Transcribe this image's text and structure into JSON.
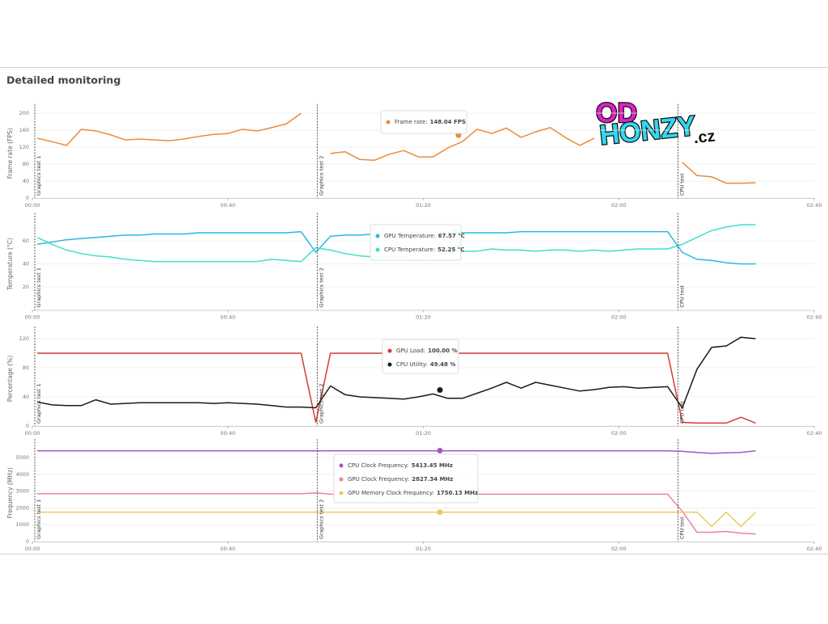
{
  "page": {
    "title": "Detailed monitoring"
  },
  "logo": {
    "top": "OD",
    "middle": "HONZY",
    "suffix": ".cz"
  },
  "chart_data": [
    {
      "type": "line",
      "ylabel": "Frame rate (FPS)",
      "xlim": [
        0,
        160
      ],
      "xticks": [
        {
          "value": 0,
          "label": "00:00"
        },
        {
          "value": 40,
          "label": "00:40"
        },
        {
          "value": 80,
          "label": "01:20"
        },
        {
          "value": 120,
          "label": "02:00"
        },
        {
          "value": 160,
          "label": "02:40"
        }
      ],
      "ylim": [
        0,
        210
      ],
      "yticks": [
        0,
        40,
        80,
        120,
        160,
        200
      ],
      "grid": true,
      "markers": [
        {
          "x": 0.5,
          "label": "Graphics test 1"
        },
        {
          "x": 58.3,
          "label": "Graphics test 2"
        },
        {
          "x": 132.1,
          "label": "CPU test"
        }
      ],
      "x": [
        1,
        4,
        7,
        10,
        13,
        16,
        19,
        22,
        25,
        28,
        31,
        34,
        37,
        40,
        43,
        46,
        49,
        52,
        55,
        58,
        61,
        64,
        67,
        70,
        73,
        76,
        79,
        82,
        85,
        88,
        91,
        94,
        97,
        100,
        103,
        106,
        109,
        112,
        115,
        118,
        121,
        124,
        127,
        130,
        133,
        136,
        139,
        142,
        145,
        148
      ],
      "series": [
        {
          "name": "Frame rate",
          "color": "#ee8a35",
          "values": [
            141,
            133,
            124,
            162,
            158,
            149,
            137,
            139,
            137,
            135,
            139,
            145,
            150,
            152,
            162,
            158,
            166,
            175,
            200,
            null,
            105,
            109,
            91,
            89,
            103,
            112,
            97,
            97,
            118,
            133,
            162,
            152,
            165,
            143,
            156,
            166,
            143,
            124,
            141,
            null,
            null,
            null,
            null,
            null,
            84,
            53,
            50,
            35,
            35,
            36
          ]
        }
      ],
      "tooltip": {
        "x": 87.2,
        "items": [
          {
            "label": "Frame rate:",
            "value": 148.04,
            "value_label": "148.04 FPS"
          }
        ]
      }
    },
    {
      "type": "line",
      "ylabel": "Temperature (°C)",
      "xlim": [
        0,
        160
      ],
      "xticks": [
        {
          "value": 0,
          "label": "00:00"
        },
        {
          "value": 40,
          "label": "00:40"
        },
        {
          "value": 80,
          "label": "01:20"
        },
        {
          "value": 120,
          "label": "02:00"
        },
        {
          "value": 160,
          "label": "02:40"
        }
      ],
      "ylim": [
        0,
        80
      ],
      "yticks": [
        20,
        40,
        60
      ],
      "grid": true,
      "markers": [
        {
          "x": 0.5,
          "label": "Graphics test 1"
        },
        {
          "x": 58.3,
          "label": "Graphics test 2"
        },
        {
          "x": 132.1,
          "label": "CPU test"
        }
      ],
      "x": [
        1,
        4,
        7,
        10,
        13,
        16,
        19,
        22,
        25,
        28,
        31,
        34,
        37,
        40,
        43,
        46,
        49,
        52,
        55,
        58,
        61,
        64,
        67,
        70,
        73,
        76,
        79,
        82,
        85,
        88,
        91,
        94,
        97,
        100,
        103,
        106,
        109,
        112,
        115,
        118,
        121,
        124,
        127,
        130,
        133,
        136,
        139,
        142,
        145,
        148
      ],
      "series": [
        {
          "name": "GPU Temperature",
          "color": "#29b6e8",
          "values": [
            57,
            59,
            61,
            62,
            63,
            64,
            65,
            65,
            66,
            66,
            66,
            67,
            67,
            67,
            67,
            67,
            67,
            67,
            68,
            50,
            64,
            65,
            65,
            66,
            66,
            67,
            67,
            67,
            67,
            67,
            67,
            67,
            67,
            68,
            68,
            68,
            68,
            68,
            68,
            68,
            68,
            68,
            68,
            68,
            50,
            44,
            43,
            41,
            40,
            40
          ]
        },
        {
          "name": "CPU Temperature",
          "color": "#40e0c8",
          "values": [
            63,
            57,
            52,
            49,
            47,
            46,
            44,
            43,
            42,
            42,
            42,
            42,
            42,
            42,
            42,
            42,
            44,
            43,
            42,
            54,
            52,
            49,
            47,
            46,
            46,
            46,
            45,
            47,
            50,
            51,
            51,
            53,
            52,
            52,
            51,
            52,
            52,
            51,
            52,
            51,
            52,
            53,
            53,
            53,
            57,
            63,
            69,
            72,
            74,
            74
          ]
        }
      ],
      "tooltip": {
        "x": 86.6,
        "items": [
          {
            "label": "GPU Temperature:",
            "value": 67.57,
            "value_label": "67.57 °C"
          },
          {
            "label": "CPU Temperature:",
            "value": 52.25,
            "value_label": "52.25 °C"
          }
        ]
      }
    },
    {
      "type": "line",
      "ylabel": "Percentage (%)",
      "xlim": [
        0,
        160
      ],
      "xticks": [
        {
          "value": 0,
          "label": "00:00"
        },
        {
          "value": 40,
          "label": "00:40"
        },
        {
          "value": 80,
          "label": "01:20"
        },
        {
          "value": 120,
          "label": "02:00"
        },
        {
          "value": 160,
          "label": "02:40"
        }
      ],
      "ylim": [
        0,
        130
      ],
      "yticks": [
        0,
        40,
        80,
        120
      ],
      "grid": true,
      "markers": [
        {
          "x": 0.5,
          "label": "Graphics test 1"
        },
        {
          "x": 58.3,
          "label": "Graphics test 2"
        },
        {
          "x": 132.1,
          "label": "CPU test"
        }
      ],
      "x": [
        1,
        4,
        7,
        10,
        13,
        16,
        19,
        22,
        25,
        28,
        31,
        34,
        37,
        40,
        43,
        46,
        49,
        52,
        55,
        58,
        61,
        64,
        67,
        70,
        73,
        76,
        79,
        82,
        85,
        88,
        91,
        94,
        97,
        100,
        103,
        106,
        109,
        112,
        115,
        118,
        121,
        124,
        127,
        130,
        133,
        136,
        139,
        142,
        145,
        148
      ],
      "series": [
        {
          "name": "GPU Load",
          "color": "#d23c32",
          "values": [
            100,
            100,
            100,
            100,
            100,
            100,
            100,
            100,
            100,
            100,
            100,
            100,
            100,
            100,
            100,
            100,
            100,
            100,
            100,
            5,
            100,
            100,
            100,
            100,
            100,
            100,
            100,
            100,
            100,
            100,
            100,
            100,
            100,
            100,
            100,
            100,
            100,
            100,
            100,
            100,
            100,
            100,
            100,
            100,
            5,
            4,
            4,
            4,
            12,
            4
          ]
        },
        {
          "name": "CPU Utility",
          "color": "#1a1a1a",
          "values": [
            33,
            29,
            28,
            28,
            36,
            30,
            31,
            32,
            32,
            32,
            32,
            32,
            31,
            32,
            31,
            30,
            28,
            26,
            26,
            25,
            55,
            43,
            40,
            39,
            38,
            37,
            40,
            44,
            38,
            38,
            45,
            52,
            60,
            52,
            60,
            56,
            52,
            48,
            50,
            53,
            54,
            52,
            53,
            54,
            25,
            78,
            108,
            110,
            122,
            120
          ]
        }
      ],
      "tooltip": {
        "x": 83.4,
        "items": [
          {
            "label": "GPU Load:",
            "value": 100,
            "value_label": "100.00 %"
          },
          {
            "label": "CPU Utility:",
            "value": 49.48,
            "value_label": "49.48 %"
          }
        ]
      }
    },
    {
      "type": "line",
      "ylabel": "Frequency (MHz)",
      "xlim": [
        0,
        160
      ],
      "xticks": [
        {
          "value": 0,
          "label": "00:00"
        },
        {
          "value": 40,
          "label": "00:40"
        },
        {
          "value": 80,
          "label": "01:20"
        },
        {
          "value": 120,
          "label": "02:00"
        },
        {
          "value": 160,
          "label": "02:40"
        }
      ],
      "ylim": [
        0,
        5800
      ],
      "yticks": [
        0,
        1000,
        2000,
        3000,
        4000,
        5000
      ],
      "grid": true,
      "markers": [
        {
          "x": 0.5,
          "label": "Graphics test 1"
        },
        {
          "x": 58.3,
          "label": "Graphics test 2"
        },
        {
          "x": 132.1,
          "label": "CPU test"
        }
      ],
      "x": [
        1,
        4,
        7,
        10,
        13,
        16,
        19,
        22,
        25,
        28,
        31,
        34,
        37,
        40,
        43,
        46,
        49,
        52,
        55,
        58,
        61,
        64,
        67,
        70,
        73,
        76,
        79,
        82,
        85,
        88,
        91,
        94,
        97,
        100,
        103,
        106,
        109,
        112,
        115,
        118,
        121,
        124,
        127,
        130,
        133,
        136,
        139,
        142,
        145,
        148
      ],
      "series": [
        {
          "name": "CPU Clock Frequency",
          "color": "#9b59c6",
          "values": [
            5400,
            5400,
            5400,
            5400,
            5400,
            5400,
            5400,
            5400,
            5400,
            5400,
            5400,
            5400,
            5400,
            5400,
            5400,
            5400,
            5400,
            5400,
            5400,
            5400,
            5400,
            5400,
            5400,
            5400,
            5400,
            5400,
            5400,
            5400,
            5400,
            5400,
            5400,
            5400,
            5400,
            5400,
            5400,
            5400,
            5400,
            5400,
            5400,
            5400,
            5400,
            5400,
            5400,
            5400,
            5370,
            5300,
            5250,
            5280,
            5300,
            5400
          ]
        },
        {
          "name": "GPU Clock Frequency",
          "color": "#e8849a",
          "values": [
            2850,
            2850,
            2850,
            2850,
            2850,
            2850,
            2850,
            2850,
            2850,
            2850,
            2850,
            2850,
            2850,
            2850,
            2850,
            2850,
            2850,
            2850,
            2850,
            2900,
            2820,
            2820,
            2820,
            2820,
            2820,
            2820,
            2820,
            2820,
            2820,
            2820,
            2820,
            2820,
            2820,
            2820,
            2820,
            2820,
            2820,
            2820,
            2820,
            2820,
            2820,
            2820,
            2820,
            2820,
            1800,
            550,
            550,
            600,
            500,
            450
          ]
        },
        {
          "name": "GPU Memory Clock Frequency",
          "color": "#f0c860",
          "values": [
            1750,
            1750,
            1750,
            1750,
            1750,
            1750,
            1750,
            1750,
            1750,
            1750,
            1750,
            1750,
            1750,
            1750,
            1750,
            1750,
            1750,
            1750,
            1750,
            1750,
            1750,
            1750,
            1750,
            1750,
            1750,
            1750,
            1750,
            1750,
            1750,
            1750,
            1750,
            1750,
            1750,
            1750,
            1750,
            1750,
            1750,
            1750,
            1750,
            1750,
            1750,
            1750,
            1750,
            1750,
            1750,
            1750,
            900,
            1750,
            900,
            1750
          ]
        }
      ],
      "tooltip": {
        "x": 83.4,
        "items": [
          {
            "label": "CPU Clock Frequency:",
            "value": 5413.45,
            "value_label": "5413.45 MHz"
          },
          {
            "label": "GPU Clock Frequency:",
            "value": 2827.34,
            "value_label": "2827.34 MHz"
          },
          {
            "label": "GPU Memory Clock Frequency:",
            "value": 1750.13,
            "value_label": "1750.13 MHz"
          }
        ]
      }
    }
  ]
}
